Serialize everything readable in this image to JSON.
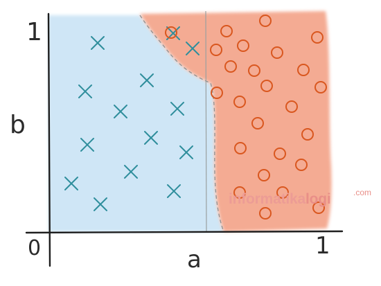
{
  "diagram": {
    "axis_labels": {
      "y_axis": "b",
      "x_axis": "a",
      "origin": "0",
      "x_max": "1",
      "y_max": "1"
    },
    "classes": [
      {
        "name": "cross",
        "marker": "x",
        "region_color": "#cfe6f6",
        "marker_color": "#2f8e9c"
      },
      {
        "name": "circle",
        "marker": "o",
        "region_color": "#f4ab93",
        "marker_color": "#d9571f"
      }
    ],
    "watermark": {
      "part1": "informatika",
      "part2": "logi",
      "suffix": ".com",
      "color1": "#ec9c95",
      "color2": "#e98f88"
    }
  }
}
